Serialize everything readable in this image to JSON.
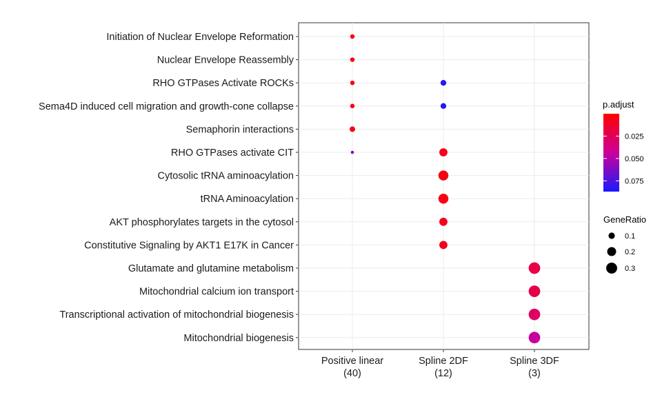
{
  "chart_data": {
    "type": "scatter",
    "categories_x": [
      {
        "line1": "Positive linear",
        "line2": "(40)"
      },
      {
        "line1": "Spline 2DF",
        "line2": "(12)"
      },
      {
        "line1": "Spline 3DF",
        "line2": "(3)"
      }
    ],
    "categories_y": [
      "Initiation of Nuclear Envelope Reformation",
      "Nuclear Envelope Reassembly",
      "RHO GTPases Activate ROCKs",
      "Sema4D induced cell migration and growth-cone collapse",
      "Semaphorin interactions",
      "RHO GTPases activate CIT",
      "Cytosolic tRNA aminoacylation",
      "tRNA Aminoacylation",
      "AKT phosphorylates targets in the cytosol",
      "Constitutive Signaling by AKT1 E17K in Cancer",
      "Glutamate and glutamine metabolism",
      "Mitochondrial calcium ion transport",
      "Transcriptional activation of mitochondrial biogenesis",
      "Mitochondrial biogenesis"
    ],
    "points": [
      {
        "x": 0,
        "y": 0,
        "gene_ratio": 0.05,
        "p_adjust": 0.005
      },
      {
        "x": 0,
        "y": 1,
        "gene_ratio": 0.05,
        "p_adjust": 0.005
      },
      {
        "x": 0,
        "y": 2,
        "gene_ratio": 0.05,
        "p_adjust": 0.005
      },
      {
        "x": 0,
        "y": 3,
        "gene_ratio": 0.05,
        "p_adjust": 0.005
      },
      {
        "x": 0,
        "y": 4,
        "gene_ratio": 0.075,
        "p_adjust": 0.005
      },
      {
        "x": 0,
        "y": 5,
        "gene_ratio": 0.025,
        "p_adjust": 0.06
      },
      {
        "x": 1,
        "y": 2,
        "gene_ratio": 0.083,
        "p_adjust": 0.085
      },
      {
        "x": 1,
        "y": 3,
        "gene_ratio": 0.083,
        "p_adjust": 0.085
      },
      {
        "x": 1,
        "y": 5,
        "gene_ratio": 0.167,
        "p_adjust": 0.008
      },
      {
        "x": 1,
        "y": 6,
        "gene_ratio": 0.25,
        "p_adjust": 0.006
      },
      {
        "x": 1,
        "y": 7,
        "gene_ratio": 0.25,
        "p_adjust": 0.006
      },
      {
        "x": 1,
        "y": 8,
        "gene_ratio": 0.167,
        "p_adjust": 0.008
      },
      {
        "x": 1,
        "y": 9,
        "gene_ratio": 0.167,
        "p_adjust": 0.008
      },
      {
        "x": 2,
        "y": 10,
        "gene_ratio": 0.333,
        "p_adjust": 0.02
      },
      {
        "x": 2,
        "y": 11,
        "gene_ratio": 0.333,
        "p_adjust": 0.02
      },
      {
        "x": 2,
        "y": 12,
        "gene_ratio": 0.333,
        "p_adjust": 0.028
      },
      {
        "x": 2,
        "y": 13,
        "gene_ratio": 0.333,
        "p_adjust": 0.045
      }
    ],
    "color_scale": {
      "title": "p.adjust",
      "low_color": "#ff0000",
      "high_color": "#0000ff",
      "range": [
        0.0,
        0.087
      ],
      "ticks": [
        0.025,
        0.05,
        0.075
      ],
      "tick_labels": [
        "0.025",
        "0.050",
        "0.075"
      ]
    },
    "size_scale": {
      "title": "GeneRatio",
      "ticks": [
        0.1,
        0.2,
        0.3
      ],
      "tick_labels": [
        "0.1",
        "0.2",
        "0.3"
      ]
    },
    "grid": true,
    "legend_position": "right"
  }
}
